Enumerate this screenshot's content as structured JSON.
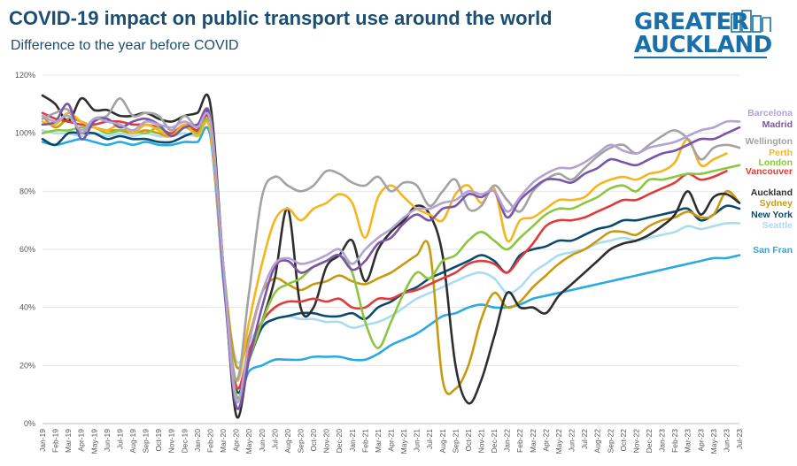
{
  "header": {
    "title": "COVID-19 impact on public transport use around the world",
    "subtitle": "Difference to the year before COVID"
  },
  "logo": {
    "line1": "GREATER",
    "line2": "AUCKLAND",
    "color": "#1b6fa8"
  },
  "chart_data": {
    "type": "line",
    "title": "COVID-19 impact on public transport use around the world",
    "subtitle": "Difference to the year before COVID",
    "xlabel": "",
    "ylabel": "",
    "ylim": [
      0,
      120
    ],
    "y_ticks": [
      "0%",
      "20%",
      "40%",
      "60%",
      "80%",
      "100%",
      "120%"
    ],
    "grid": true,
    "legend": "right, labels at line ends",
    "x": [
      "Jan-19",
      "Feb-19",
      "Mar-19",
      "Apr-19",
      "May-19",
      "Jun-19",
      "Jul-19",
      "Aug-19",
      "Sep-19",
      "Oct-19",
      "Nov-19",
      "Dec-19",
      "Jan-20",
      "Feb-20",
      "Mar-20",
      "Apr-20",
      "May-20",
      "Jun-20",
      "Jul-20",
      "Aug-20",
      "Sep-20",
      "Oct-20",
      "Nov-20",
      "Dec-20",
      "Jan-21",
      "Feb-21",
      "Mar-21",
      "Apr-21",
      "May-21",
      "Jun-21",
      "Jul-21",
      "Aug-21",
      "Sep-21",
      "Oct-21",
      "Nov-21",
      "Dec-21",
      "Jan-22",
      "Feb-22",
      "Mar-22",
      "Apr-22",
      "May-22",
      "Jun-22",
      "Jul-22",
      "Aug-22",
      "Sep-22",
      "Oct-22",
      "Nov-22",
      "Dec-22",
      "Jan-23",
      "Feb-23",
      "Mar-23",
      "Apr-23",
      "May-23",
      "Jun-23",
      "Jul-23"
    ],
    "x_tick_labels": [
      "Jan-19",
      "Feb-19",
      "Mar-19",
      "Apr-19",
      "May-19",
      "Jun-19",
      "Jul-19",
      "Aug-19",
      "Sep-19",
      "Oct-19",
      "Nov-19",
      "Dec-19",
      "Jan-20",
      "Feb-20",
      "Mar-20",
      "Apr-20",
      "May-20",
      "Jun-20",
      "Jul-20",
      "Aug-20",
      "Sep-20",
      "Oct-20",
      "Nov-20",
      "Dec-20",
      "Jan-21",
      "Feb-21",
      "Mar-21",
      "Apr-21",
      "May-21",
      "Jun-21",
      "Jul-21",
      "Aug-21",
      "Sep-21",
      "Oct-21",
      "Nov-21",
      "Dec-21",
      "Jan-22",
      "Feb-22",
      "Mar-22",
      "Apr-22",
      "May-22",
      "Jun-22",
      "Jul-22",
      "Aug-22",
      "Sep-22",
      "Oct-22",
      "Nov-22",
      "Dec-22",
      "Jan-23",
      "Feb-23",
      "Mar-23",
      "Apr-23",
      "May-23",
      "Jun-23",
      "Jul-23"
    ],
    "series": [
      {
        "name": "Barcelona",
        "color": "#b3a2d4",
        "values": [
          106,
          104,
          106,
          101,
          105,
          104,
          103,
          101,
          104,
          103,
          102,
          104,
          102,
          104,
          55,
          8,
          28,
          45,
          55,
          57,
          55,
          56,
          58,
          60,
          55,
          60,
          64,
          67,
          71,
          74,
          74,
          76,
          77,
          80,
          79,
          80,
          73,
          78,
          83,
          86,
          88,
          88,
          90,
          93,
          96,
          94,
          93,
          95,
          96,
          97,
          99,
          101,
          102,
          104,
          104
        ]
      },
      {
        "name": "Madrid",
        "color": "#7b55a5",
        "values": [
          103,
          104,
          110,
          98,
          104,
          105,
          102,
          104,
          105,
          103,
          99,
          102,
          103,
          105,
          52,
          6,
          22,
          40,
          54,
          56,
          52,
          54,
          56,
          58,
          53,
          56,
          62,
          64,
          69,
          72,
          70,
          74,
          75,
          79,
          78,
          80,
          71,
          77,
          81,
          84,
          84,
          83,
          86,
          88,
          91,
          90,
          89,
          91,
          93,
          94,
          96,
          98,
          98,
          100,
          102
        ]
      },
      {
        "name": "Wellington",
        "color": "#a3a3a3",
        "values": [
          105,
          107,
          108,
          100,
          105,
          106,
          112,
          106,
          107,
          106,
          101,
          106,
          102,
          106,
          55,
          15,
          45,
          78,
          85,
          82,
          80,
          82,
          87,
          86,
          83,
          82,
          85,
          80,
          83,
          82,
          75,
          80,
          84,
          74,
          75,
          82,
          77,
          73,
          80,
          84,
          86,
          84,
          88,
          92,
          95,
          96,
          93,
          96,
          99,
          101,
          98,
          91,
          95,
          96,
          95
        ]
      },
      {
        "name": "Perth",
        "color": "#f6b41d",
        "values": [
          104,
          103,
          107,
          104,
          102,
          101,
          103,
          100,
          103,
          101,
          99,
          103,
          99,
          101,
          52,
          15,
          35,
          55,
          70,
          74,
          70,
          74,
          76,
          79,
          76,
          64,
          78,
          82,
          78,
          74,
          72,
          70,
          79,
          82,
          76,
          81,
          63,
          70,
          71,
          74,
          77,
          77,
          78,
          82,
          84,
          85,
          84,
          86,
          87,
          90,
          98,
          89,
          91,
          93,
          null
        ]
      },
      {
        "name": "London",
        "color": "#8cc540",
        "values": [
          100,
          101,
          101,
          102,
          102,
          100,
          101,
          101,
          100,
          102,
          99,
          102,
          100,
          102,
          52,
          10,
          22,
          35,
          45,
          48,
          50,
          54,
          56,
          58,
          52,
          35,
          26,
          35,
          45,
          52,
          50,
          56,
          58,
          63,
          66,
          63,
          60,
          64,
          68,
          72,
          74,
          74,
          76,
          78,
          81,
          82,
          80,
          84,
          84,
          85,
          86,
          86,
          87,
          88,
          89
        ]
      },
      {
        "name": "Vancouver",
        "color": "#e03b3b",
        "values": [
          107,
          105,
          104,
          103,
          103,
          104,
          104,
          103,
          103,
          102,
          100,
          103,
          101,
          103,
          52,
          13,
          25,
          35,
          40,
          42,
          42,
          43,
          42,
          43,
          40,
          40,
          43,
          43,
          45,
          46,
          48,
          50,
          52,
          55,
          56,
          55,
          52,
          57,
          62,
          68,
          70,
          70,
          71,
          73,
          75,
          77,
          77,
          79,
          81,
          83,
          86,
          84,
          85,
          87,
          null
        ]
      },
      {
        "name": "Auckland",
        "color": "#2e2e2e",
        "values": [
          113,
          110,
          104,
          112,
          108,
          108,
          106,
          106,
          107,
          105,
          104,
          106,
          107,
          110,
          55,
          3,
          22,
          35,
          50,
          74,
          40,
          40,
          54,
          58,
          63,
          49,
          60,
          66,
          70,
          75,
          72,
          58,
          20,
          7,
          15,
          30,
          45,
          40,
          40,
          38,
          44,
          48,
          52,
          56,
          60,
          62,
          63,
          65,
          68,
          72,
          80,
          72,
          78,
          79,
          76
        ]
      },
      {
        "name": "Sydney",
        "color": "#c89a10",
        "values": [
          106,
          102,
          105,
          104,
          102,
          101,
          101,
          100,
          101,
          100,
          99,
          103,
          100,
          102,
          55,
          20,
          30,
          45,
          50,
          48,
          46,
          48,
          49,
          51,
          49,
          48,
          50,
          52,
          55,
          58,
          60,
          15,
          12,
          20,
          36,
          45,
          40,
          42,
          47,
          51,
          55,
          58,
          60,
          63,
          66,
          66,
          65,
          68,
          70,
          71,
          73,
          71,
          72,
          80,
          76
        ]
      },
      {
        "name": "New York",
        "color": "#0b4a6f",
        "values": [
          98,
          96,
          100,
          100,
          100,
          98,
          99,
          98,
          98,
          97,
          97,
          99,
          101,
          105,
          55,
          12,
          22,
          33,
          36,
          37,
          38,
          38,
          37,
          37,
          38,
          36,
          40,
          42,
          45,
          47,
          50,
          52,
          54,
          56,
          58,
          56,
          52,
          58,
          60,
          61,
          63,
          63,
          65,
          67,
          68,
          70,
          70,
          71,
          72,
          73,
          74,
          70,
          72,
          75,
          74
        ]
      },
      {
        "name": "Seattle",
        "color": "#a9dcf3",
        "values": [
          101,
          100,
          100,
          99,
          100,
          99,
          100,
          99,
          100,
          99,
          99,
          100,
          99,
          101,
          52,
          22,
          28,
          34,
          36,
          37,
          36,
          36,
          35,
          35,
          33,
          34,
          35,
          37,
          40,
          43,
          45,
          47,
          49,
          51,
          52,
          50,
          45,
          47,
          52,
          55,
          58,
          59,
          60,
          62,
          63,
          64,
          63,
          64,
          65,
          66,
          68,
          67,
          68,
          69,
          69
        ]
      },
      {
        "name": "San Fran",
        "color": "#29abe2",
        "values": [
          97,
          96,
          97,
          98,
          97,
          96,
          97,
          96,
          97,
          96,
          96,
          97,
          97,
          99,
          50,
          10,
          18,
          20,
          22,
          22,
          22,
          23,
          23,
          23,
          22,
          22,
          24,
          27,
          29,
          31,
          34,
          37,
          38,
          40,
          41,
          40,
          40,
          41,
          43,
          44,
          45,
          46,
          47,
          48,
          49,
          50,
          51,
          52,
          53,
          54,
          55,
          56,
          57,
          57,
          58
        ]
      }
    ]
  }
}
